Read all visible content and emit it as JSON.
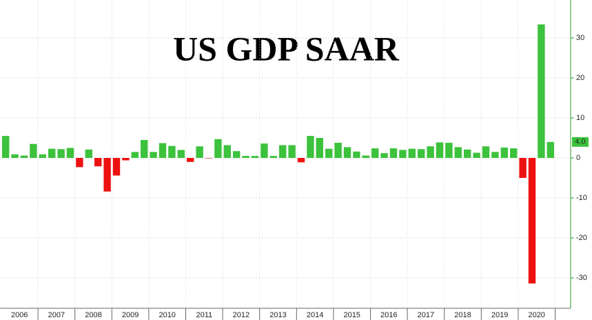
{
  "chart_data": {
    "type": "bar",
    "title": "US GDP SAAR",
    "years": [
      "2006",
      "2007",
      "2008",
      "2009",
      "2010",
      "2011",
      "2012",
      "2013",
      "2014",
      "2015",
      "2016",
      "2017",
      "2018",
      "2019",
      "2020"
    ],
    "values": [
      5.5,
      0.9,
      0.6,
      3.5,
      0.9,
      2.3,
      2.2,
      2.5,
      -2.3,
      2.1,
      -2.1,
      -8.4,
      -4.4,
      -0.6,
      1.5,
      4.5,
      1.5,
      3.7,
      3.0,
      2.0,
      -1.0,
      2.9,
      -0.1,
      4.7,
      3.2,
      1.7,
      0.5,
      0.5,
      3.6,
      0.5,
      3.2,
      3.2,
      -1.1,
      5.5,
      5.0,
      2.3,
      3.8,
      2.7,
      1.6,
      0.6,
      2.4,
      1.2,
      2.4,
      2.0,
      2.3,
      2.2,
      2.9,
      3.9,
      3.8,
      2.7,
      2.1,
      1.3,
      2.9,
      1.5,
      2.6,
      2.4,
      -5.0,
      -31.4,
      33.4,
      4.0
    ],
    "value_labels": [
      null,
      null,
      null,
      null,
      null,
      null,
      null,
      null,
      null,
      null,
      null,
      null,
      null,
      null,
      null,
      null,
      null,
      null,
      null,
      null,
      null,
      null,
      null,
      null,
      null,
      null,
      null,
      null,
      null,
      null,
      null,
      null,
      null,
      null,
      null,
      null,
      null,
      null,
      null,
      null,
      null,
      null,
      null,
      null,
      null,
      null,
      null,
      null,
      null,
      null,
      null,
      null,
      null,
      null,
      null,
      null,
      null,
      null,
      null,
      "4.0"
    ],
    "positive_color": "#3cc23c",
    "negative_color": "#ee1111",
    "ylim": [
      -37.6,
      39.5
    ],
    "yticks": [
      30,
      20,
      10,
      0,
      -10,
      -20,
      -30
    ],
    "grid": true,
    "y_axis_side": "right"
  }
}
